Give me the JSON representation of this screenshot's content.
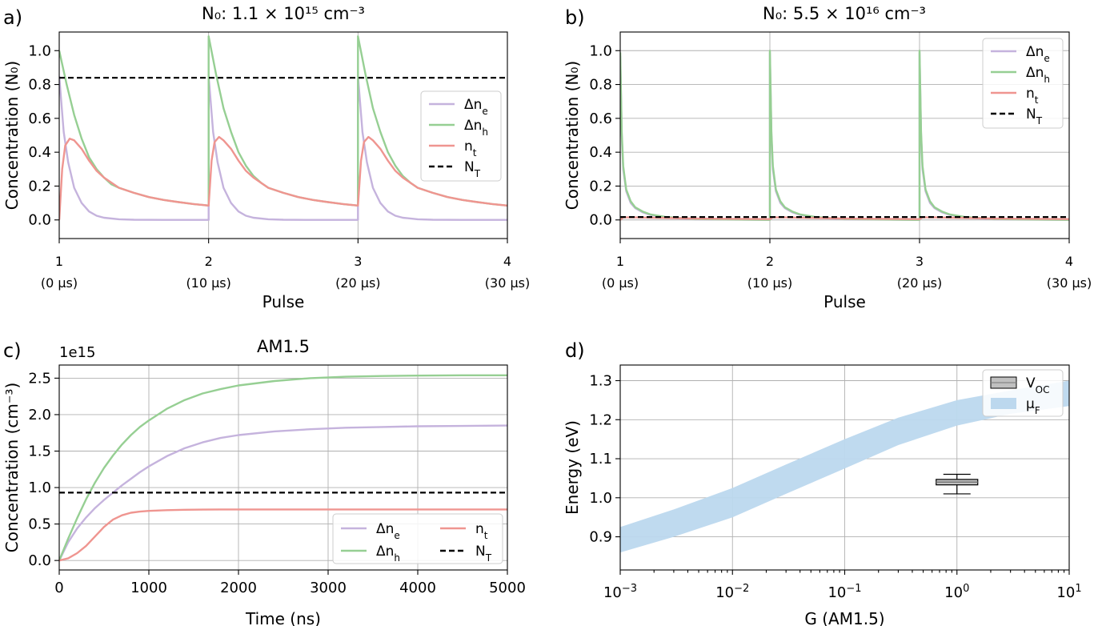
{
  "chart_data": [
    {
      "panel": "a)",
      "type": "line",
      "title": "N₀: 1.1 × 10¹⁵ cm⁻³",
      "xlabel": "Pulse",
      "ylabel": "Concentration (N₀)",
      "xlim": [
        1,
        4
      ],
      "ylim": [
        -0.11,
        1.11
      ],
      "xticks": [
        {
          "value": 1,
          "label": "1",
          "sub": "(0 μs)"
        },
        {
          "value": 2,
          "label": "2",
          "sub": "(10 μs)"
        },
        {
          "value": 3,
          "label": "3",
          "sub": "(20 μs)"
        },
        {
          "value": 4,
          "label": "4",
          "sub": "(30 μs)"
        }
      ],
      "yticks": [
        "0.0",
        "0.2",
        "0.4",
        "0.6",
        "0.8",
        "1.0"
      ],
      "grid": "x",
      "legend_position": "right",
      "legend": [
        "Δn_e",
        "Δn_h",
        "n_t",
        "N_T"
      ],
      "series": [
        {
          "name": "Δn_e",
          "color": "#c5b3dd",
          "x": [
            1,
            1.03,
            1.06,
            1.1,
            1.15,
            1.2,
            1.25,
            1.3,
            1.4,
            1.5,
            1.7,
            2.0,
            2.0,
            2.03,
            2.06,
            2.1,
            2.15,
            2.2,
            2.25,
            2.3,
            2.4,
            2.5,
            2.7,
            3.0,
            3.0,
            3.03,
            3.06,
            3.1,
            3.15,
            3.2,
            3.25,
            3.3,
            3.4,
            3.5,
            3.7,
            4.0
          ],
          "y": [
            0.85,
            0.52,
            0.34,
            0.19,
            0.1,
            0.05,
            0.025,
            0.013,
            0.004,
            0.001,
            0,
            0,
            0.85,
            0.52,
            0.34,
            0.19,
            0.1,
            0.05,
            0.025,
            0.013,
            0.004,
            0.001,
            0,
            0,
            0.85,
            0.52,
            0.34,
            0.19,
            0.1,
            0.05,
            0.025,
            0.013,
            0.004,
            0.001,
            0,
            0
          ]
        },
        {
          "name": "Δn_h",
          "color": "#96cf93",
          "x": [
            1,
            1.05,
            1.1,
            1.15,
            1.2,
            1.25,
            1.3,
            1.35,
            1.4,
            1.5,
            1.6,
            1.7,
            1.8,
            1.9,
            2.0,
            2.0,
            2.05,
            2.1,
            2.15,
            2.2,
            2.25,
            2.3,
            2.35,
            2.4,
            2.5,
            2.6,
            2.7,
            2.8,
            2.9,
            3.0,
            3.0,
            3.05,
            3.1,
            3.15,
            3.2,
            3.25,
            3.3,
            3.35,
            3.4,
            3.5,
            3.6,
            3.7,
            3.8,
            3.9,
            4.0
          ],
          "y": [
            1.0,
            0.8,
            0.62,
            0.48,
            0.37,
            0.3,
            0.25,
            0.21,
            0.19,
            0.16,
            0.135,
            0.118,
            0.105,
            0.094,
            0.085,
            1.085,
            0.86,
            0.66,
            0.52,
            0.4,
            0.32,
            0.26,
            0.22,
            0.19,
            0.16,
            0.135,
            0.118,
            0.105,
            0.094,
            0.085,
            1.085,
            0.86,
            0.66,
            0.52,
            0.4,
            0.32,
            0.26,
            0.22,
            0.19,
            0.16,
            0.135,
            0.118,
            0.105,
            0.094,
            0.085
          ]
        },
        {
          "name": "n_t",
          "color": "#ef9590",
          "x": [
            1,
            1.02,
            1.04,
            1.07,
            1.1,
            1.15,
            1.2,
            1.25,
            1.3,
            1.4,
            1.5,
            1.6,
            1.7,
            1.8,
            1.9,
            2.0,
            2.0,
            2.02,
            2.04,
            2.07,
            2.1,
            2.15,
            2.2,
            2.25,
            2.3,
            2.4,
            2.5,
            2.6,
            2.7,
            2.8,
            2.9,
            3.0,
            3.0,
            3.02,
            3.04,
            3.07,
            3.1,
            3.15,
            3.2,
            3.25,
            3.3,
            3.4,
            3.5,
            3.6,
            3.7,
            3.8,
            3.9,
            4.0
          ],
          "y": [
            0.0,
            0.3,
            0.44,
            0.48,
            0.47,
            0.42,
            0.35,
            0.29,
            0.25,
            0.19,
            0.16,
            0.135,
            0.118,
            0.105,
            0.094,
            0.085,
            0.085,
            0.35,
            0.46,
            0.49,
            0.47,
            0.42,
            0.35,
            0.29,
            0.25,
            0.19,
            0.16,
            0.135,
            0.118,
            0.105,
            0.094,
            0.085,
            0.085,
            0.35,
            0.46,
            0.49,
            0.47,
            0.42,
            0.35,
            0.29,
            0.25,
            0.19,
            0.16,
            0.135,
            0.118,
            0.105,
            0.094,
            0.085
          ]
        },
        {
          "name": "N_T",
          "color": "#000000",
          "dashed": true,
          "x": [
            1,
            4
          ],
          "y": [
            0.84,
            0.84
          ]
        }
      ]
    },
    {
      "panel": "b)",
      "type": "line",
      "title": "N₀: 5.5 × 10¹⁶ cm⁻³",
      "xlabel": "Pulse",
      "ylabel": "Concentration (N₀)",
      "xlim": [
        1,
        4
      ],
      "ylim": [
        -0.11,
        1.11
      ],
      "xticks": [
        {
          "value": 1,
          "label": "1",
          "sub": "(0 μs)"
        },
        {
          "value": 2,
          "label": "2",
          "sub": "(10 μs)"
        },
        {
          "value": 3,
          "label": "3",
          "sub": "(20 μs)"
        },
        {
          "value": 4,
          "label": "4",
          "sub": "(30 μs)"
        }
      ],
      "yticks": [
        "0.0",
        "0.2",
        "0.4",
        "0.6",
        "0.8",
        "1.0"
      ],
      "grid": "both",
      "legend_position": "upper right",
      "legend": [
        "Δn_e",
        "Δn_h",
        "n_t",
        "N_T"
      ],
      "series": [
        {
          "name": "Δn_e",
          "color": "#c5b3dd",
          "x": [
            1,
            1.01,
            1.02,
            1.04,
            1.07,
            1.1,
            1.15,
            1.2,
            1.3,
            1.5,
            2.0,
            2.0,
            2.01,
            2.02,
            2.04,
            2.07,
            2.1,
            2.15,
            2.2,
            2.3,
            2.5,
            3.0,
            3.0,
            3.01,
            3.02,
            3.04,
            3.07,
            3.1,
            3.15,
            3.2,
            3.3,
            3.5,
            4.0
          ],
          "y": [
            0.97,
            0.5,
            0.3,
            0.17,
            0.1,
            0.07,
            0.045,
            0.03,
            0.015,
            0.003,
            0.0,
            0.99,
            0.5,
            0.3,
            0.17,
            0.1,
            0.07,
            0.045,
            0.03,
            0.015,
            0.003,
            0.0,
            0.99,
            0.5,
            0.3,
            0.17,
            0.1,
            0.07,
            0.045,
            0.03,
            0.015,
            0.003,
            0.0
          ]
        },
        {
          "name": "Δn_h",
          "color": "#96cf93",
          "x": [
            1,
            1.01,
            1.02,
            1.04,
            1.07,
            1.1,
            1.15,
            1.2,
            1.3,
            1.5,
            2.0,
            2.0,
            2.01,
            2.02,
            2.04,
            2.07,
            2.1,
            2.15,
            2.2,
            2.3,
            2.5,
            3.0,
            3.0,
            3.01,
            3.02,
            3.04,
            3.07,
            3.1,
            3.15,
            3.2,
            3.3,
            3.5,
            4.0
          ],
          "y": [
            0.99,
            0.52,
            0.32,
            0.18,
            0.11,
            0.075,
            0.05,
            0.033,
            0.018,
            0.005,
            0.0,
            1.0,
            0.52,
            0.32,
            0.18,
            0.11,
            0.075,
            0.05,
            0.033,
            0.018,
            0.005,
            0.0,
            1.0,
            0.52,
            0.32,
            0.18,
            0.11,
            0.075,
            0.05,
            0.033,
            0.018,
            0.005,
            0.0
          ]
        },
        {
          "name": "n_t",
          "color": "#ef9590",
          "x": [
            1,
            1.02,
            1.1,
            1.5,
            2.0,
            2.02,
            2.1,
            2.5,
            3.0,
            3.02,
            3.1,
            3.5,
            4.0
          ],
          "y": [
            0.0,
            0.015,
            0.015,
            0.008,
            0.005,
            0.015,
            0.015,
            0.008,
            0.005,
            0.015,
            0.015,
            0.008,
            0.005
          ]
        },
        {
          "name": "N_T",
          "color": "#000000",
          "dashed": true,
          "x": [
            1,
            4
          ],
          "y": [
            0.017,
            0.017
          ]
        }
      ]
    },
    {
      "panel": "c)",
      "type": "line",
      "title": "AM1.5",
      "xlabel": "Time (ns)",
      "ylabel": "Concentration (cm⁻³)",
      "offset_label": "1e15",
      "xlim": [
        0,
        5000
      ],
      "ylim": [
        -0.13,
        2.68
      ],
      "xticks": [
        0,
        1000,
        2000,
        3000,
        4000,
        5000
      ],
      "yticks": [
        "0.0",
        "0.5",
        "1.0",
        "1.5",
        "2.0",
        "2.5"
      ],
      "grid": "both",
      "legend_position": "lower right",
      "legend": [
        "Δn_e",
        "Δn_h",
        "n_t",
        "N_T"
      ],
      "series": [
        {
          "name": "Δn_e",
          "color": "#c5b3dd",
          "x": [
            0,
            100,
            200,
            300,
            400,
            500,
            600,
            700,
            800,
            900,
            1000,
            1200,
            1400,
            1600,
            1800,
            2000,
            2400,
            2800,
            3200,
            3600,
            4000,
            4500,
            5000
          ],
          "y": [
            0,
            0.25,
            0.44,
            0.59,
            0.72,
            0.83,
            0.93,
            1.03,
            1.12,
            1.21,
            1.29,
            1.43,
            1.54,
            1.62,
            1.68,
            1.72,
            1.77,
            1.8,
            1.82,
            1.83,
            1.84,
            1.845,
            1.85
          ]
        },
        {
          "name": "Δn_h",
          "color": "#96cf93",
          "x": [
            0,
            100,
            200,
            300,
            400,
            500,
            600,
            700,
            800,
            900,
            1000,
            1200,
            1400,
            1600,
            1800,
            2000,
            2400,
            2800,
            3200,
            3600,
            4000,
            4500,
            5000
          ],
          "y": [
            0,
            0.3,
            0.58,
            0.84,
            1.07,
            1.27,
            1.44,
            1.59,
            1.72,
            1.83,
            1.92,
            2.08,
            2.2,
            2.29,
            2.35,
            2.4,
            2.46,
            2.5,
            2.52,
            2.53,
            2.535,
            2.54,
            2.54
          ]
        },
        {
          "name": "n_t",
          "color": "#ef9590",
          "x": [
            0,
            100,
            200,
            300,
            400,
            500,
            600,
            700,
            800,
            900,
            1000,
            1200,
            1400,
            1600,
            1800,
            2000,
            3000,
            4000,
            5000
          ],
          "y": [
            0,
            0.03,
            0.1,
            0.2,
            0.33,
            0.46,
            0.56,
            0.62,
            0.655,
            0.67,
            0.68,
            0.69,
            0.695,
            0.698,
            0.7,
            0.7,
            0.7,
            0.7,
            0.7
          ]
        },
        {
          "name": "N_T",
          "color": "#000000",
          "dashed": true,
          "x": [
            0,
            5000
          ],
          "y": [
            0.93,
            0.93
          ]
        }
      ]
    },
    {
      "panel": "d)",
      "type": "area",
      "xlabel": "G (AM1.5)",
      "ylabel": "Energy (eV)",
      "xscale": "log",
      "xlim": [
        0.001,
        10
      ],
      "ylim": [
        0.815,
        1.34
      ],
      "xticks": [
        {
          "value": 0.001,
          "base": "10",
          "exp": "−3"
        },
        {
          "value": 0.01,
          "base": "10",
          "exp": "−2"
        },
        {
          "value": 0.1,
          "base": "10",
          "exp": "−1"
        },
        {
          "value": 1,
          "base": "10",
          "exp": "0"
        },
        {
          "value": 10,
          "base": "10",
          "exp": "1"
        }
      ],
      "yticks": [
        "0.9",
        "1.0",
        "1.1",
        "1.2",
        "1.3"
      ],
      "grid": "both",
      "legend_position": "upper right",
      "legend": [
        "V_OC",
        "μ_F"
      ],
      "band": {
        "name": "μ_F",
        "color": "#bcd8ee",
        "x": [
          0.001,
          0.003,
          0.01,
          0.03,
          0.1,
          0.3,
          1,
          3,
          10
        ],
        "lower": [
          0.86,
          0.9,
          0.95,
          1.01,
          1.075,
          1.135,
          1.185,
          1.215,
          1.235
        ],
        "upper": [
          0.925,
          0.97,
          1.025,
          1.085,
          1.15,
          1.205,
          1.25,
          1.275,
          1.3
        ]
      },
      "box": {
        "name": "V_OC",
        "color": "#c0c0c0",
        "x": 1,
        "whisker_low": 1.01,
        "q1": 1.033,
        "median": 1.04,
        "q3": 1.047,
        "whisker_high": 1.06
      }
    }
  ]
}
